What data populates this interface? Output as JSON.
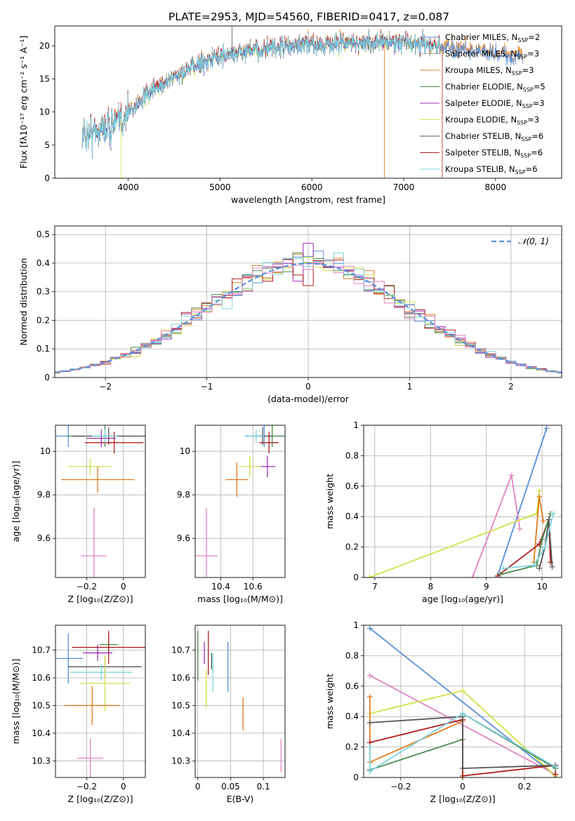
{
  "figure": {
    "title": "PLATE=2953, MJD=54560, FIBERID=0417, z=0.087"
  },
  "colors": {
    "Chabrier MILES": "#5b8fd6",
    "Salpeter MILES": "#aaaaaa",
    "Kroupa MILES": "#e07b1e",
    "Chabrier ELODIE": "#4c8a4c",
    "Salpeter ELODIE": "#9b2fb3",
    "Kroupa ELODIE": "#d4e048",
    "Chabrier STELIB": "#555555",
    "Salpeter STELIB": "#b01f1f",
    "Kroupa STELIB": "#7fd3de",
    "pink": "#e083c0",
    "normal_curve": "#5b8fd6"
  },
  "chart_data": [
    {
      "id": "spectrum",
      "type": "line",
      "xlabel": "wavelength [Angstrom, rest frame]",
      "ylabel": "Flux [fλ10⁻¹⁷ erg cm⁻² s⁻¹ A⁻¹]",
      "xlim": [
        3200,
        8720
      ],
      "ylim": [
        0,
        23
      ],
      "xticks": [
        4000,
        5000,
        6000,
        7000,
        8000
      ],
      "yticks": [
        0,
        5,
        10,
        15,
        20
      ],
      "legend_position": "top-right",
      "legend": [
        "Chabrier MILES, N_SSP=2",
        "Salpeter MILES, N_SSP=3",
        "Kroupa MILES, N_SSP=3",
        "Chabrier ELODIE, N_SSP=5",
        "Salpeter ELODIE, N_SSP=3",
        "Kroupa ELODIE, N_SSP=3",
        "Chabrier STELIB, N_SSP=6",
        "Salpeter STELIB, N_SSP=6",
        "Kroupa STELIB, N_SSP=6"
      ],
      "continuum": {
        "x": [
          3500,
          3700,
          3900,
          4000,
          4200,
          4400,
          4600,
          4800,
          5000,
          5200,
          5500,
          5800,
          6000,
          6300,
          6600,
          6900,
          7200,
          7400,
          7800,
          8200
        ],
        "y": [
          6.5,
          7.5,
          8.5,
          10.0,
          12.5,
          14.5,
          16.0,
          17.5,
          18.5,
          19.0,
          19.5,
          20.0,
          20.2,
          20.4,
          20.5,
          20.6,
          20.3,
          20.0,
          19.3,
          18.5
        ]
      }
    },
    {
      "id": "residuals",
      "type": "step",
      "xlabel": "(data-model)/error",
      "ylabel": "Normed distribution",
      "xlim": [
        -2.5,
        2.5
      ],
      "ylim": [
        0,
        0.53
      ],
      "xticks": [
        -2,
        -1,
        0,
        1,
        2
      ],
      "yticks": [
        0.0,
        0.1,
        0.2,
        0.3,
        0.4,
        0.5
      ],
      "grid": true,
      "legend_position": "top-right",
      "legend": [
        "𝒩(0, 1)"
      ],
      "bin_width": 0.1
    },
    {
      "id": "age_vs_Z",
      "type": "errorbar",
      "xlabel": "Z [log₁₀(Z/Z⊙)]",
      "ylabel": "age  [log₁₀(age/yr)]",
      "xlim": [
        -0.37,
        0.12
      ],
      "ylim": [
        9.42,
        10.12
      ],
      "xticks": [
        -0.2,
        0.0
      ],
      "yticks": [
        9.6,
        9.8,
        10.0
      ],
      "grid": true,
      "points": [
        {
          "model": "Chabrier MILES",
          "x": -0.3,
          "y": 10.07,
          "xerr": 0.08,
          "yerr": 0.05
        },
        {
          "model": "Chabrier ELODIE",
          "x": -0.1,
          "y": 10.07,
          "xerr": 0.21,
          "yerr": 0.05
        },
        {
          "model": "Chabrier STELIB",
          "x": -0.08,
          "y": 10.07,
          "xerr": 0.2,
          "yerr": 0.04
        },
        {
          "model": "Salpeter STELIB",
          "x": -0.05,
          "y": 10.04,
          "xerr": 0.16,
          "yerr": 0.05
        },
        {
          "model": "Salpeter ELODIE",
          "x": -0.12,
          "y": 10.06,
          "xerr": 0.08,
          "yerr": 0.04
        },
        {
          "model": "Kroupa STELIB",
          "x": -0.1,
          "y": 10.07,
          "xerr": 0.07,
          "yerr": 0.03
        },
        {
          "model": "Kroupa ELODIE",
          "x": -0.18,
          "y": 9.93,
          "xerr": 0.12,
          "yerr": 0.04
        },
        {
          "model": "Kroupa MILES",
          "x": -0.14,
          "y": 9.87,
          "xerr": 0.2,
          "yerr": 0.06
        },
        {
          "model": "pink",
          "x": -0.16,
          "y": 9.52,
          "xerr": 0.07,
          "yerr": 0.22
        }
      ]
    },
    {
      "id": "age_vs_mass",
      "type": "errorbar",
      "xlabel": "mass [log₁₀(M/M⊙)]",
      "ylabel": "",
      "xlim": [
        10.24,
        10.8
      ],
      "ylim": [
        9.42,
        10.12
      ],
      "xticks": [
        10.4,
        10.6
      ],
      "yticks": [
        9.6,
        9.8,
        10.0
      ],
      "grid": true,
      "points": [
        {
          "model": "Chabrier MILES",
          "x": 10.67,
          "y": 10.07,
          "xerr": 0.12,
          "yerr": 0.05
        },
        {
          "model": "Chabrier ELODIE",
          "x": 10.72,
          "y": 10.07,
          "xerr": 0.08,
          "yerr": 0.05
        },
        {
          "model": "Chabrier STELIB",
          "x": 10.66,
          "y": 10.07,
          "xerr": 0.06,
          "yerr": 0.04
        },
        {
          "model": "Salpeter STELIB",
          "x": 10.7,
          "y": 10.04,
          "xerr": 0.06,
          "yerr": 0.05
        },
        {
          "model": "Salpeter ELODIE",
          "x": 10.69,
          "y": 9.93,
          "xerr": 0.05,
          "yerr": 0.05
        },
        {
          "model": "Kroupa STELIB",
          "x": 10.62,
          "y": 10.07,
          "xerr": 0.05,
          "yerr": 0.03
        },
        {
          "model": "Kroupa ELODIE",
          "x": 10.58,
          "y": 9.93,
          "xerr": 0.07,
          "yerr": 0.05
        },
        {
          "model": "Kroupa MILES",
          "x": 10.5,
          "y": 9.87,
          "xerr": 0.07,
          "yerr": 0.08
        },
        {
          "model": "pink",
          "x": 10.31,
          "y": 9.52,
          "xerr": 0.07,
          "yerr": 0.22
        }
      ]
    },
    {
      "id": "weight_vs_age",
      "type": "line",
      "xlabel": "age  [log₁₀(age/yr)]",
      "ylabel": "mass weight",
      "xlim": [
        6.8,
        10.35
      ],
      "ylim": [
        0,
        1
      ],
      "xticks": [
        7,
        8,
        9,
        10
      ],
      "yticks": [
        0.0,
        0.2,
        0.4,
        0.6,
        0.8,
        1.0
      ],
      "grid": true,
      "series": [
        {
          "model": "Chabrier MILES",
          "x": [
            9.2,
            10.08
          ],
          "y": [
            0.01,
            0.98
          ]
        },
        {
          "model": "pink",
          "x": [
            8.75,
            9.45,
            9.6
          ],
          "y": [
            0.0,
            0.67,
            0.32
          ]
        },
        {
          "model": "Kroupa ELODIE",
          "x": [
            6.9,
            9.9,
            9.95
          ],
          "y": [
            0.0,
            0.42,
            0.57
          ]
        },
        {
          "model": "Kroupa MILES",
          "x": [
            9.85,
            9.95,
            10.02
          ],
          "y": [
            0.1,
            0.53,
            0.37
          ]
        },
        {
          "model": "Salpeter STELIB",
          "x": [
            9.2,
            9.95,
            10.12,
            10.15
          ],
          "y": [
            0.01,
            0.22,
            0.38,
            0.1
          ]
        },
        {
          "model": "Chabrier ELODIE",
          "x": [
            9.25,
            9.9,
            10.0,
            10.15
          ],
          "y": [
            0.02,
            0.08,
            0.25,
            0.42
          ]
        },
        {
          "model": "Chabrier STELIB",
          "x": [
            9.95,
            10.05,
            10.12,
            10.18
          ],
          "y": [
            0.06,
            0.2,
            0.38,
            0.07
          ]
        },
        {
          "model": "Kroupa STELIB",
          "x": [
            9.3,
            9.85,
            10.05,
            10.2
          ],
          "y": [
            0.06,
            0.08,
            0.2,
            0.42
          ]
        }
      ]
    },
    {
      "id": "mass_vs_Z",
      "type": "errorbar",
      "xlabel": "Z [log₁₀(Z/Z⊙)]",
      "ylabel": "mass [log₁₀(M/M⊙)]",
      "xlim": [
        -0.37,
        0.12
      ],
      "ylim": [
        10.24,
        10.79
      ],
      "xticks": [
        -0.2,
        0.0
      ],
      "yticks": [
        10.3,
        10.4,
        10.5,
        10.6,
        10.7
      ],
      "grid": true,
      "points": [
        {
          "model": "Chabrier MILES",
          "x": -0.3,
          "y": 10.67,
          "xerr": 0.08,
          "yerr": 0.09
        },
        {
          "model": "Chabrier ELODIE",
          "x": -0.08,
          "y": 10.72,
          "xerr": 0.05,
          "yerr": 0.03
        },
        {
          "model": "Chabrier STELIB",
          "x": -0.1,
          "y": 10.64,
          "xerr": 0.2,
          "yerr": 0.04
        },
        {
          "model": "Salpeter STELIB",
          "x": -0.08,
          "y": 10.71,
          "xerr": 0.2,
          "yerr": 0.06
        },
        {
          "model": "Salpeter ELODIE",
          "x": -0.14,
          "y": 10.69,
          "xerr": 0.08,
          "yerr": 0.03
        },
        {
          "model": "Kroupa STELIB",
          "x": -0.12,
          "y": 10.62,
          "xerr": 0.17,
          "yerr": 0.03
        },
        {
          "model": "Kroupa ELODIE",
          "x": -0.1,
          "y": 10.58,
          "xerr": 0.14,
          "yerr": 0.1
        },
        {
          "model": "Kroupa MILES",
          "x": -0.17,
          "y": 10.5,
          "xerr": 0.15,
          "yerr": 0.07
        },
        {
          "model": "pink",
          "x": -0.18,
          "y": 10.31,
          "xerr": 0.07,
          "yerr": 0.07
        }
      ]
    },
    {
      "id": "mass_vs_EBV",
      "type": "errorbar",
      "xlabel": "E(B-V)",
      "ylabel": "",
      "xlim": [
        -0.004,
        0.133
      ],
      "ylim": [
        10.24,
        10.79
      ],
      "xticks": [
        0.0,
        0.05,
        0.1
      ],
      "yticks": [
        10.3,
        10.4,
        10.5,
        10.6,
        10.7
      ],
      "grid": true,
      "points": [
        {
          "model": "Chabrier ELODIE",
          "x": 0.0,
          "y": 10.68,
          "xerr": 0,
          "yerr": 0.09
        },
        {
          "model": "Salpeter ELODIE",
          "x": 0.01,
          "y": 10.69,
          "xerr": 0,
          "yerr": 0.04
        },
        {
          "model": "Salpeter STELIB",
          "x": 0.016,
          "y": 10.69,
          "xerr": 0,
          "yerr": 0.08
        },
        {
          "model": "Chabrier STELIB",
          "x": 0.021,
          "y": 10.66,
          "xerr": 0,
          "yerr": 0.03
        },
        {
          "model": "Kroupa ELODIE",
          "x": 0.013,
          "y": 10.56,
          "xerr": 0,
          "yerr": 0.07
        },
        {
          "model": "Kroupa STELIB",
          "x": 0.023,
          "y": 10.62,
          "xerr": 0,
          "yerr": 0.07
        },
        {
          "model": "Chabrier MILES",
          "x": 0.046,
          "y": 10.64,
          "xerr": 0,
          "yerr": 0.09
        },
        {
          "model": "Kroupa MILES",
          "x": 0.069,
          "y": 10.47,
          "xerr": 0,
          "yerr": 0.06
        },
        {
          "model": "pink",
          "x": 0.127,
          "y": 10.32,
          "xerr": 0,
          "yerr": 0.06
        }
      ]
    },
    {
      "id": "weight_vs_Z",
      "type": "line",
      "xlabel": "Z [log₁₀(Z/Z⊙)]",
      "ylabel": "mass weight",
      "xlim": [
        -0.32,
        0.32
      ],
      "ylim": [
        0,
        1
      ],
      "xticks": [
        -0.2,
        0.0,
        0.2
      ],
      "yticks": [
        0.0,
        0.2,
        0.4,
        0.6,
        0.8,
        1.0
      ],
      "grid": true,
      "series": [
        {
          "model": "Chabrier MILES",
          "x": [
            -0.3,
            0.3
          ],
          "y": [
            0.98,
            0.01
          ]
        },
        {
          "model": "pink",
          "x": [
            -0.3,
            0.3
          ],
          "y": [
            0.67,
            0.02
          ]
        },
        {
          "model": "Kroupa ELODIE",
          "x": [
            -0.3,
            0.0,
            0.3
          ],
          "y": [
            0.42,
            0.57,
            0.01
          ]
        },
        {
          "model": "Kroupa MILES",
          "x": [
            -0.3,
            -0.3,
            0.0,
            0.0
          ],
          "y": [
            0.53,
            0.1,
            0.37,
            0.0
          ]
        },
        {
          "model": "Salpeter STELIB",
          "x": [
            -0.3,
            0.0,
            0.0,
            0.3,
            0.3
          ],
          "y": [
            0.23,
            0.38,
            0.01,
            0.08,
            0.02
          ]
        },
        {
          "model": "Chabrier ELODIE",
          "x": [
            -0.3,
            0.0,
            0.0,
            0.3
          ],
          "y": [
            0.05,
            0.25,
            0.42,
            0.06
          ]
        },
        {
          "model": "Chabrier STELIB",
          "x": [
            -0.3,
            0.0,
            0.0,
            0.3
          ],
          "y": [
            0.36,
            0.4,
            0.06,
            0.08
          ]
        },
        {
          "model": "Kroupa STELIB",
          "x": [
            -0.3,
            -0.3,
            0.0,
            0.3
          ],
          "y": [
            0.2,
            0.04,
            0.42,
            0.07
          ]
        }
      ]
    }
  ]
}
